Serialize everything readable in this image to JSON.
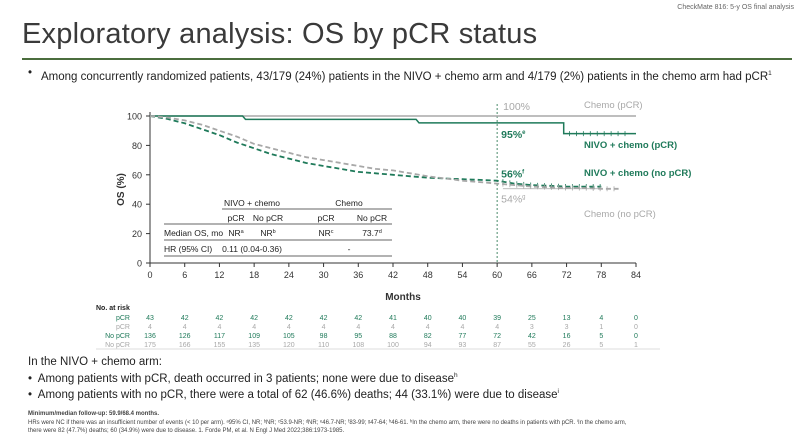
{
  "header": {
    "source_label": "CheckMate 816: 5-y OS final analysis",
    "title": "Exploratory analysis: OS by pCR status"
  },
  "intro_bullet": {
    "text": "Among concurrently randomized patients, 43/179 (24%) patients in the NIVO + chemo arm and 4/179 (2%) patients in the chemo arm had pCR",
    "ref": "1"
  },
  "chart_data": {
    "type": "line",
    "subtype": "kaplan-meier",
    "xlabel": "Months",
    "ylabel": "OS (%)",
    "xlim": [
      0,
      84
    ],
    "ylim": [
      0,
      100
    ],
    "x_ticks": [
      0,
      6,
      12,
      18,
      24,
      30,
      36,
      42,
      48,
      54,
      60,
      66,
      72,
      78,
      84
    ],
    "y_ticks": [
      0,
      20,
      40,
      60,
      80,
      100
    ],
    "landmark_month": 60,
    "colors": {
      "nivo": "#1f7a5a",
      "chemo": "#a8a8a8",
      "axis": "#333333",
      "landmark": "#4a8a6a"
    },
    "series": [
      {
        "name": "Chemo (pCR)",
        "color": "#a8a8a8",
        "style": "solid",
        "points": [
          [
            0,
            100
          ],
          [
            84,
            100
          ]
        ]
      },
      {
        "name": "NIVO + chemo (pCR)",
        "color": "#1f7a5a",
        "style": "solid",
        "points": [
          [
            0,
            100
          ],
          [
            16,
            100
          ],
          [
            16.5,
            97.7
          ],
          [
            46,
            97.7
          ],
          [
            46.5,
            95.3
          ],
          [
            71.5,
            95.3
          ],
          [
            71.5,
            88
          ],
          [
            84,
            88
          ]
        ]
      },
      {
        "name": "NIVO + chemo (no pCR)",
        "color": "#1f7a5a",
        "style": "dashed",
        "points": [
          [
            0,
            100
          ],
          [
            3,
            98
          ],
          [
            6,
            95
          ],
          [
            9,
            91
          ],
          [
            12,
            87
          ],
          [
            15,
            82
          ],
          [
            18,
            78
          ],
          [
            21,
            74
          ],
          [
            24,
            71
          ],
          [
            27,
            68
          ],
          [
            30,
            66
          ],
          [
            33,
            64
          ],
          [
            36,
            62
          ],
          [
            39,
            61
          ],
          [
            42,
            60
          ],
          [
            45,
            59
          ],
          [
            48,
            58
          ],
          [
            51,
            57.5
          ],
          [
            54,
            57
          ],
          [
            57,
            56.5
          ],
          [
            60,
            56
          ],
          [
            63,
            54
          ],
          [
            66,
            53
          ],
          [
            69,
            52.5
          ],
          [
            72,
            52
          ],
          [
            75,
            52
          ],
          [
            78,
            52
          ]
        ]
      },
      {
        "name": "Chemo (no pCR)",
        "color": "#a8a8a8",
        "style": "dashed",
        "points": [
          [
            0,
            100
          ],
          [
            3,
            99
          ],
          [
            6,
            97
          ],
          [
            9,
            94
          ],
          [
            12,
            90
          ],
          [
            15,
            86
          ],
          [
            18,
            81
          ],
          [
            21,
            78
          ],
          [
            24,
            75
          ],
          [
            27,
            72
          ],
          [
            30,
            70
          ],
          [
            33,
            68
          ],
          [
            36,
            66
          ],
          [
            39,
            64
          ],
          [
            42,
            63
          ],
          [
            45,
            61
          ],
          [
            48,
            59
          ],
          [
            51,
            57.5
          ],
          [
            54,
            56
          ],
          [
            57,
            55
          ],
          [
            60,
            54
          ],
          [
            63,
            53
          ],
          [
            66,
            52
          ],
          [
            69,
            51.5
          ],
          [
            72,
            51
          ],
          [
            75,
            51
          ],
          [
            78,
            50.5
          ],
          [
            81,
            50.5
          ]
        ]
      }
    ],
    "annotations": [
      {
        "text": "100%",
        "x": 60,
        "y": 100,
        "color": "#a8a8a8"
      },
      {
        "text": "95%",
        "sup": "e",
        "x": 60,
        "y": 95.3,
        "color": "#1f7a5a"
      },
      {
        "text": "56%",
        "sup": "f",
        "x": 60,
        "y": 56,
        "color": "#1f7a5a"
      },
      {
        "text": "54%",
        "sup": "g",
        "x": 60,
        "y": 54,
        "color": "#a8a8a8"
      }
    ],
    "series_labels": [
      "Chemo (pCR)",
      "NIVO + chemo (pCR)",
      "NIVO + chemo (no pCR)",
      "Chemo (no pCR)"
    ],
    "summary_table": {
      "group_headers": [
        "NIVO + chemo",
        "Chemo"
      ],
      "col_headers": [
        "pCR",
        "No pCR",
        "pCR",
        "No pCR"
      ],
      "rows": [
        {
          "label": "Median OS, mo",
          "cells": [
            "NR",
            "NR",
            "NR",
            "73.7"
          ],
          "sups": [
            "a",
            "b",
            "c",
            "d"
          ]
        },
        {
          "label": "HR (95% CI)",
          "cells": [
            "0.11 (0.04-0.36)",
            "-"
          ]
        }
      ]
    },
    "at_risk": {
      "title": "No. at risk",
      "rows": [
        {
          "label": "pCR",
          "color": "#1f7a5a",
          "values": [
            43,
            42,
            42,
            42,
            42,
            42,
            42,
            41,
            40,
            40,
            39,
            25,
            13,
            4,
            0
          ]
        },
        {
          "label": "pCR",
          "color": "#a8a8a8",
          "values": [
            4,
            4,
            4,
            4,
            4,
            4,
            4,
            4,
            4,
            4,
            4,
            3,
            3,
            1,
            0
          ]
        },
        {
          "label": "No pCR",
          "color": "#1f7a5a",
          "values": [
            136,
            126,
            117,
            109,
            105,
            98,
            95,
            88,
            82,
            77,
            72,
            42,
            16,
            5,
            0
          ]
        },
        {
          "label": "No pCR",
          "color": "#a8a8a8",
          "values": [
            175,
            166,
            155,
            135,
            120,
            110,
            108,
            100,
            94,
            93,
            87,
            55,
            26,
            5,
            1
          ]
        }
      ]
    }
  },
  "bottom_section": {
    "heading": "In the NIVO + chemo arm:",
    "bullets": [
      {
        "text": "Among patients with pCR, death occurred in 3 patients; none were due to disease",
        "sup": "h"
      },
      {
        "text": "Among patients with no pCR, there were a total of 62 (46.6%) deaths; 44 (33.1%) were due to disease",
        "sup": "i"
      }
    ]
  },
  "footnotes": {
    "followup": "Minimum/median follow-up: 59.9/68.4 months.",
    "line1": "HRs were NC if there was an insufficient number of events (< 10 per arm). ᵃ95% CI, NR; ᵇNR; ᶜ53.9-NR; ᵈNR; ᵉ46.7-NR; ᶠ83-99; ᵍ47-64; ʰ46-61. ʰIn the chemo arm, there were no deaths in patients with pCR. ⁱIn the chemo arm,",
    "line2": "there were 82 (47.7%) deaths; 60 (34.9%) were due to disease. 1. Forde PM, et al. N Engl J Med 2022;386:1973-1985."
  }
}
